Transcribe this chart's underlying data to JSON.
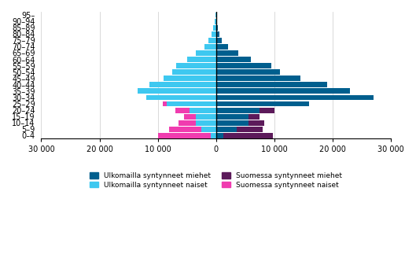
{
  "age_groups": [
    "0–4",
    "5–9",
    "10–14",
    "15–19",
    "20–24",
    "25–29",
    "30–34",
    "35–39",
    "40–44",
    "45–49",
    "50–54",
    "55–59",
    "60–64",
    "65–69",
    "70–74",
    "75–79",
    "80–84",
    "85–89",
    "90–94",
    "95–"
  ],
  "ulk_miehet": [
    1200,
    3500,
    5500,
    5500,
    7500,
    16000,
    27000,
    23000,
    19000,
    14500,
    11000,
    9500,
    6000,
    3800,
    2000,
    1000,
    600,
    300,
    150,
    80
  ],
  "ulk_naiset": [
    900,
    2500,
    3500,
    3500,
    4500,
    8500,
    12000,
    13500,
    11500,
    9000,
    7500,
    6800,
    5000,
    3500,
    2000,
    1300,
    800,
    500,
    250,
    100
  ],
  "suo_miehet": [
    8500,
    4500,
    2800,
    2000,
    2500,
    0,
    0,
    0,
    0,
    0,
    0,
    0,
    0,
    0,
    0,
    0,
    0,
    0,
    0,
    0
  ],
  "suo_naiset": [
    9000,
    5500,
    3000,
    2000,
    2500,
    700,
    0,
    0,
    0,
    0,
    0,
    0,
    0,
    0,
    0,
    0,
    0,
    0,
    0,
    0
  ],
  "color_ulk_miehet": "#005f8e",
  "color_ulk_naiset": "#3ec8f0",
  "color_suo_miehet": "#5c1a5a",
  "color_suo_naiset": "#f03caf",
  "xlim": 30000,
  "xticks": [
    -30000,
    -20000,
    -10000,
    0,
    10000,
    20000,
    30000
  ],
  "xticklabels": [
    "30 000",
    "20 000",
    "10 000",
    "0",
    "10 000",
    "20 000",
    "30 000"
  ],
  "legend_labels_row1": [
    "Ulkomailla syntynneet miehet",
    "Ulkomailla syntynneet naiset"
  ],
  "legend_labels_row2": [
    "Suomessa syntynneet miehet",
    "Suomessa syntynneet naiset"
  ],
  "legend_colors": [
    "#005f8e",
    "#3ec8f0",
    "#5c1a5a",
    "#f03caf"
  ]
}
